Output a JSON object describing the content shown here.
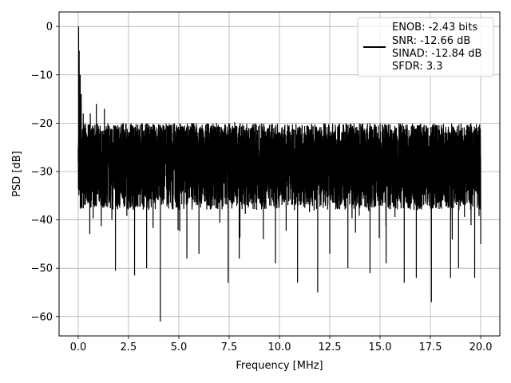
{
  "chart_data": {
    "type": "line",
    "title": "",
    "xlabel": "Frequency [MHz]",
    "ylabel": "PSD [dB]",
    "xlim": [
      -0.95,
      20.95
    ],
    "ylim": [
      -64,
      3
    ],
    "xticks": [
      0.0,
      2.5,
      5.0,
      7.5,
      10.0,
      12.5,
      15.0,
      17.5,
      20.0
    ],
    "xtick_labels": [
      "0.0",
      "2.5",
      "5.0",
      "7.5",
      "10.0",
      "12.5",
      "15.0",
      "17.5",
      "20.0"
    ],
    "yticks": [
      0,
      -10,
      -20,
      -30,
      -40,
      -50,
      -60
    ],
    "ytick_labels": [
      "0",
      "−10",
      "−20",
      "−30",
      "−40",
      "−50",
      "−60"
    ],
    "grid": true,
    "legend_position": "top-right",
    "legend_lines": [
      "ENOB: -2.43 bits",
      "SNR: -12.66 dB",
      "SINAD: -12.84 dB",
      "SFDR: 3.3"
    ],
    "series": [
      {
        "color": "#000000",
        "noise_floor_db": [
          -38,
          -20
        ],
        "x": [
          0.0,
          0.02,
          0.05,
          0.1,
          0.15,
          0.25,
          0.4,
          0.6,
          0.9,
          1.3,
          1.85,
          2.8,
          3.4,
          4.08,
          5.4,
          6.0,
          7.45,
          8.0,
          9.2,
          9.8,
          10.9,
          11.9,
          12.5,
          13.4,
          14.5,
          15.3,
          16.2,
          16.8,
          17.55,
          18.5,
          18.9,
          19.7,
          20.0
        ],
        "y": [
          -28,
          0,
          -5,
          -10,
          -14,
          -18,
          -22,
          -18,
          -16,
          -17,
          -50.5,
          -51.5,
          -50,
          -61,
          -48,
          -47,
          -53,
          -48,
          -44,
          -49,
          -53,
          -55,
          -47,
          -50,
          -51,
          -49,
          -53,
          -52,
          -57,
          -52,
          -50,
          -52,
          -45
        ]
      }
    ]
  }
}
